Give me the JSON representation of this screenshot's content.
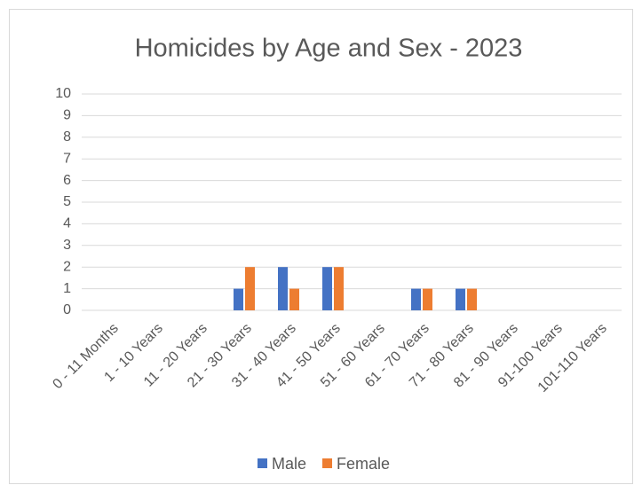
{
  "chart_data": {
    "type": "bar",
    "title": "Homicides by Age and Sex - 2023",
    "categories": [
      "0 - 11 Months",
      "1 - 10 Years",
      "11 - 20 Years",
      "21 - 30 Years",
      "31 - 40 Years",
      "41 - 50 Years",
      "51 - 60 Years",
      "61 - 70 Years",
      "71 - 80 Years",
      "81 - 90 Years",
      "91-100 Years",
      "101-110 Years"
    ],
    "series": [
      {
        "name": "Male",
        "color": "#4472c4",
        "values": [
          0,
          0,
          0,
          1,
          2,
          2,
          0,
          1,
          1,
          0,
          0,
          0
        ]
      },
      {
        "name": "Female",
        "color": "#ed7d31",
        "values": [
          0,
          0,
          0,
          2,
          1,
          2,
          0,
          1,
          1,
          0,
          0,
          0
        ]
      }
    ],
    "ylim": [
      0,
      10
    ],
    "yticks": [
      0,
      1,
      2,
      3,
      4,
      5,
      6,
      7,
      8,
      9,
      10
    ],
    "grid": true,
    "legend": "bottom"
  }
}
